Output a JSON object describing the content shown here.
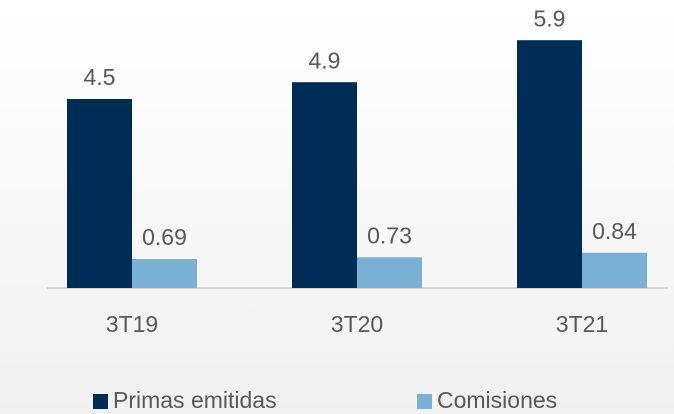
{
  "chart_data": {
    "type": "bar",
    "categories": [
      "3T19",
      "3T20",
      "3T21"
    ],
    "series": [
      {
        "name": "Primas emitidas",
        "color": "#002d56",
        "values": [
          4.5,
          4.9,
          5.9
        ]
      },
      {
        "name": "Comisiones",
        "color": "#7bafd4",
        "values": [
          0.69,
          0.73,
          0.84
        ]
      }
    ],
    "legend": "bottom"
  }
}
